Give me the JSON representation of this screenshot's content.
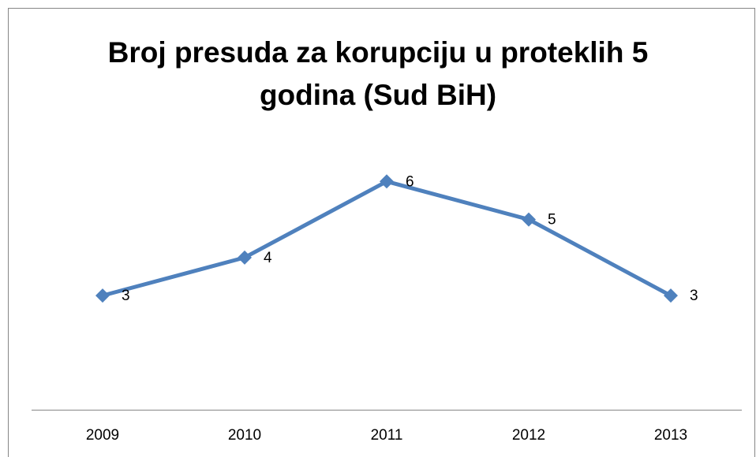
{
  "chart_data": {
    "type": "line",
    "title": "Broj presuda za korupciju u proteklih 5 godina (Sud BiH)",
    "categories": [
      "2009",
      "2010",
      "2011",
      "2012",
      "2013"
    ],
    "values": [
      3,
      4,
      6,
      5,
      3
    ],
    "color": "#4f81bd",
    "ylim": [
      0,
      7
    ],
    "data_labels": true
  }
}
